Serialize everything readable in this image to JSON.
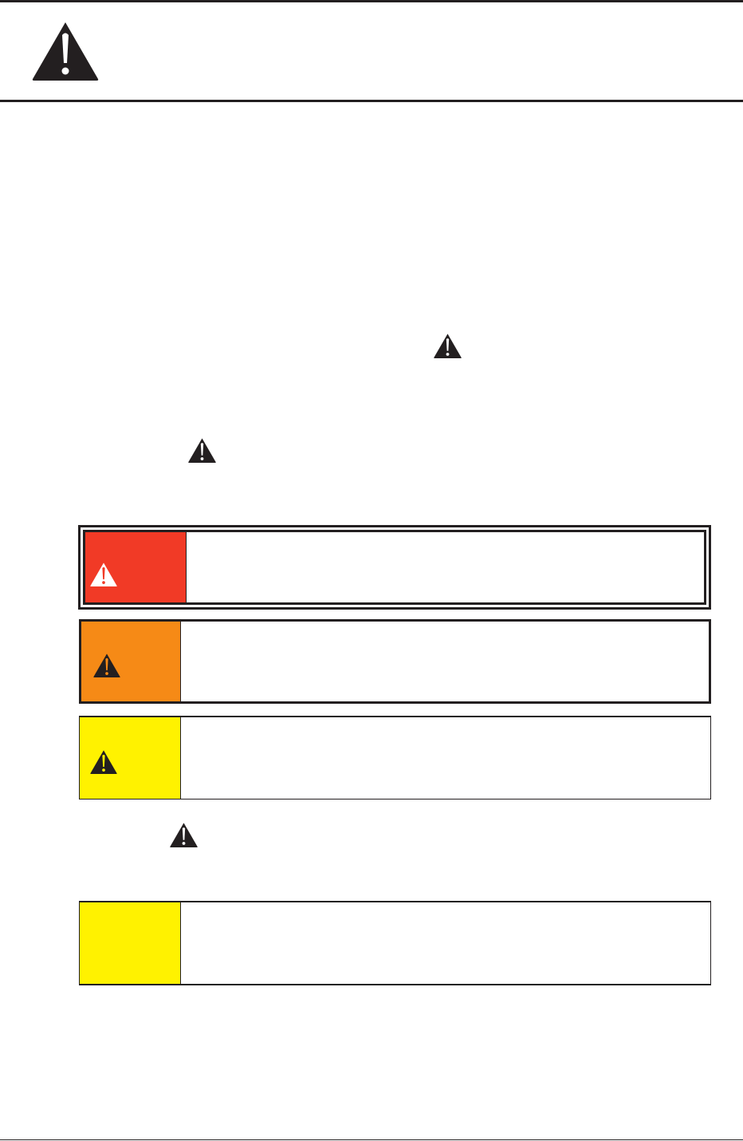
{
  "header": {
    "icon": "warning-triangle-icon"
  },
  "inline_icons": [
    "warning-triangle-icon",
    "warning-triangle-icon",
    "warning-triangle-icon"
  ],
  "signal_boxes": [
    {
      "level": "danger",
      "color": "#f13a26",
      "icon": "warning-triangle-icon",
      "icon_color": "#ffffff"
    },
    {
      "level": "warning",
      "color": "#f68a16",
      "icon": "warning-triangle-icon",
      "icon_color": "#231f20"
    },
    {
      "level": "caution",
      "color": "#fff200",
      "icon": "warning-triangle-icon",
      "icon_color": "#231f20"
    },
    {
      "level": "notice",
      "color": "#fff200"
    }
  ],
  "colors": {
    "ink": "#231f20"
  }
}
